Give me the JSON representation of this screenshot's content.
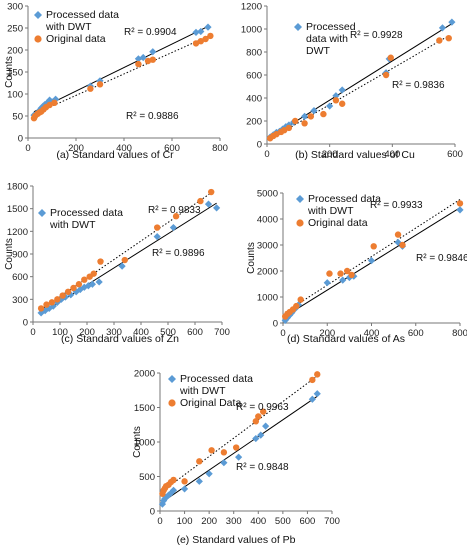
{
  "colors": {
    "processed": "#5b9bd5",
    "original": "#ed7d31",
    "axis": "#777777",
    "fit": "#000000"
  },
  "chart_data": [
    {
      "id": "cr",
      "type": "scatter",
      "caption": "(a) Standard values of Cr",
      "ylabel": "Counts",
      "xlim": [
        0,
        800
      ],
      "ylim": [
        0,
        300
      ],
      "xticks": [
        "0",
        "200",
        "400",
        "600",
        "800"
      ],
      "yticks": [
        "0",
        "50",
        "100",
        "150",
        "200",
        "250",
        "300"
      ],
      "legend": [
        "Processed data",
        "with DWT",
        "Original data"
      ],
      "legend_placement": "top-left",
      "series": [
        {
          "name": "Processed data with DWT",
          "marker": "diamond",
          "fit": "solid",
          "r2": "R² = 0.9904",
          "points": [
            [
              25,
              52
            ],
            [
              35,
              55
            ],
            [
              45,
              60
            ],
            [
              50,
              64
            ],
            [
              55,
              68
            ],
            [
              62,
              72
            ],
            [
              70,
              76
            ],
            [
              80,
              80
            ],
            [
              90,
              86
            ],
            [
              100,
              82
            ],
            [
              115,
              88
            ],
            [
              260,
              118
            ],
            [
              300,
              130
            ],
            [
              460,
              180
            ],
            [
              480,
              183
            ],
            [
              520,
              196
            ],
            [
              700,
              240
            ],
            [
              720,
              242
            ],
            [
              750,
              252
            ]
          ]
        },
        {
          "name": "Original data",
          "marker": "circle",
          "fit": "dotted",
          "r2": "R² = 0.9886",
          "points": [
            [
              25,
              45
            ],
            [
              30,
              50
            ],
            [
              40,
              55
            ],
            [
              48,
              58
            ],
            [
              55,
              60
            ],
            [
              65,
              65
            ],
            [
              75,
              70
            ],
            [
              90,
              75
            ],
            [
              110,
              80
            ],
            [
              260,
              112
            ],
            [
              300,
              122
            ],
            [
              460,
              168
            ],
            [
              500,
              175
            ],
            [
              520,
              178
            ],
            [
              700,
              215
            ],
            [
              720,
              220
            ],
            [
              740,
              225
            ],
            [
              760,
              232
            ]
          ]
        }
      ]
    },
    {
      "id": "cu",
      "type": "scatter",
      "caption": "(b) Standard values of Cu",
      "ylabel": "",
      "xlim": [
        0,
        600
      ],
      "ylim": [
        0,
        1200
      ],
      "xticks": [
        "0",
        "200",
        "400",
        "600"
      ],
      "yticks": [
        "0",
        "200",
        "400",
        "600",
        "800",
        "1000",
        "1200"
      ],
      "legend": [
        "Processed",
        "data with",
        "DWT"
      ],
      "legend_placement": "top-right",
      "series": [
        {
          "name": "Processed data with DWT",
          "marker": "diamond",
          "fit": "solid",
          "r2": "R² = 0.9928",
          "points": [
            [
              10,
              60
            ],
            [
              20,
              80
            ],
            [
              30,
              100
            ],
            [
              40,
              110
            ],
            [
              50,
              130
            ],
            [
              60,
              150
            ],
            [
              70,
              165
            ],
            [
              85,
              190
            ],
            [
              120,
              240
            ],
            [
              150,
              290
            ],
            [
              200,
              330
            ],
            [
              220,
              420
            ],
            [
              240,
              470
            ],
            [
              380,
              620
            ],
            [
              390,
              740
            ],
            [
              560,
              1010
            ],
            [
              590,
              1060
            ]
          ]
        },
        {
          "name": "Original data",
          "marker": "circle",
          "fit": "dotted",
          "r2": "R² = 0.9836",
          "points": [
            [
              10,
              50
            ],
            [
              20,
              70
            ],
            [
              30,
              85
            ],
            [
              45,
              105
            ],
            [
              55,
              120
            ],
            [
              70,
              140
            ],
            [
              90,
              200
            ],
            [
              120,
              180
            ],
            [
              140,
              240
            ],
            [
              180,
              260
            ],
            [
              220,
              380
            ],
            [
              240,
              350
            ],
            [
              380,
              600
            ],
            [
              395,
              750
            ],
            [
              550,
              900
            ],
            [
              580,
              920
            ]
          ]
        }
      ]
    },
    {
      "id": "zn",
      "type": "scatter",
      "caption": "(c) Standard values of Zn",
      "ylabel": "Counts",
      "xlim": [
        0,
        700
      ],
      "ylim": [
        0,
        1800
      ],
      "xticks": [
        "0",
        "100",
        "200",
        "300",
        "400",
        "500",
        "600",
        "700"
      ],
      "yticks": [
        "0",
        "300",
        "600",
        "900",
        "1200",
        "1500",
        "1800"
      ],
      "legend": [
        "Processed data",
        "with DWT"
      ],
      "legend_placement": "top-left",
      "series": [
        {
          "name": "Processed data with DWT",
          "marker": "diamond",
          "fit": "solid",
          "r2": "R² = 0.9833",
          "points": [
            [
              30,
              120
            ],
            [
              45,
              150
            ],
            [
              60,
              180
            ],
            [
              75,
              210
            ],
            [
              90,
              260
            ],
            [
              105,
              300
            ],
            [
              120,
              330
            ],
            [
              140,
              360
            ],
            [
              160,
              400
            ],
            [
              175,
              430
            ],
            [
              190,
              460
            ],
            [
              205,
              480
            ],
            [
              220,
              500
            ],
            [
              245,
              530
            ],
            [
              330,
              740
            ],
            [
              460,
              1130
            ],
            [
              520,
              1250
            ],
            [
              650,
              1560
            ],
            [
              680,
              1510
            ]
          ]
        },
        {
          "name": "Original data",
          "marker": "circle",
          "fit": "dotted",
          "r2": "R² = 0.9896",
          "points": [
            [
              30,
              180
            ],
            [
              50,
              230
            ],
            [
              70,
              260
            ],
            [
              90,
              300
            ],
            [
              110,
              350
            ],
            [
              130,
              400
            ],
            [
              150,
              450
            ],
            [
              170,
              500
            ],
            [
              190,
              560
            ],
            [
              210,
              600
            ],
            [
              225,
              640
            ],
            [
              250,
              800
            ],
            [
              340,
              820
            ],
            [
              460,
              1250
            ],
            [
              530,
              1400
            ],
            [
              620,
              1600
            ],
            [
              660,
              1720
            ]
          ]
        }
      ]
    },
    {
      "id": "as",
      "type": "scatter",
      "caption": "(d) Standard values of As",
      "ylabel": "Counts",
      "xlim": [
        0,
        800
      ],
      "ylim": [
        0,
        5000
      ],
      "xticks": [
        "0",
        "200",
        "400",
        "600",
        "800"
      ],
      "yticks": [
        "0",
        "1000",
        "2000",
        "3000",
        "4000",
        "5000"
      ],
      "legend": [
        "Processed data",
        "with DWT",
        "Original data"
      ],
      "legend_placement": "top-left",
      "series": [
        {
          "name": "Processed data with DWT",
          "marker": "diamond",
          "fit": "solid",
          "r2": "R² = 0.9933",
          "points": [
            [
              10,
              100
            ],
            [
              20,
              200
            ],
            [
              30,
              300
            ],
            [
              40,
              400
            ],
            [
              55,
              550
            ],
            [
              70,
              700
            ],
            [
              200,
              1550
            ],
            [
              270,
              1650
            ],
            [
              300,
              1750
            ],
            [
              320,
              1800
            ],
            [
              400,
              2400
            ],
            [
              520,
              3100
            ],
            [
              540,
              2950
            ],
            [
              800,
              4350
            ]
          ]
        },
        {
          "name": "Original data",
          "marker": "circle",
          "fit": "dotted",
          "r2": "R² = 0.9846",
          "points": [
            [
              10,
              250
            ],
            [
              20,
              350
            ],
            [
              30,
              420
            ],
            [
              45,
              520
            ],
            [
              60,
              650
            ],
            [
              80,
              900
            ],
            [
              210,
              1900
            ],
            [
              260,
              1900
            ],
            [
              290,
              2000
            ],
            [
              310,
              1850
            ],
            [
              410,
              2950
            ],
            [
              520,
              3400
            ],
            [
              540,
              3000
            ],
            [
              800,
              4600
            ]
          ]
        }
      ]
    },
    {
      "id": "pb",
      "type": "scatter",
      "caption": "(e) Standard values of Pb",
      "ylabel": "Counts",
      "xlim": [
        0,
        700
      ],
      "ylim": [
        0,
        2000
      ],
      "xticks": [
        "0",
        "100",
        "200",
        "300",
        "400",
        "500",
        "600",
        "700"
      ],
      "yticks": [
        "0",
        "500",
        "1000",
        "1500",
        "2000"
      ],
      "legend": [
        "Processed data",
        "with DWT",
        "Original Data"
      ],
      "legend_placement": "top-left",
      "series": [
        {
          "name": "Processed data with DWT",
          "marker": "diamond",
          "fit": "solid",
          "r2": "R² = 0.9963",
          "points": [
            [
              10,
              100
            ],
            [
              15,
              150
            ],
            [
              20,
              180
            ],
            [
              25,
              200
            ],
            [
              35,
              230
            ],
            [
              45,
              260
            ],
            [
              55,
              300
            ],
            [
              100,
              320
            ],
            [
              160,
              430
            ],
            [
              200,
              540
            ],
            [
              260,
              700
            ],
            [
              320,
              780
            ],
            [
              390,
              1050
            ],
            [
              410,
              1100
            ],
            [
              430,
              1230
            ],
            [
              620,
              1620
            ],
            [
              640,
              1700
            ]
          ]
        },
        {
          "name": "Original data",
          "marker": "circle",
          "fit": "dotted",
          "r2": "R² = 0.9848",
          "points": [
            [
              10,
              250
            ],
            [
              15,
              300
            ],
            [
              20,
              330
            ],
            [
              25,
              360
            ],
            [
              35,
              380
            ],
            [
              45,
              420
            ],
            [
              55,
              450
            ],
            [
              100,
              430
            ],
            [
              160,
              720
            ],
            [
              210,
              880
            ],
            [
              260,
              850
            ],
            [
              310,
              920
            ],
            [
              390,
              1300
            ],
            [
              400,
              1370
            ],
            [
              420,
              1440
            ],
            [
              620,
              1900
            ],
            [
              640,
              1980
            ]
          ]
        }
      ]
    }
  ]
}
